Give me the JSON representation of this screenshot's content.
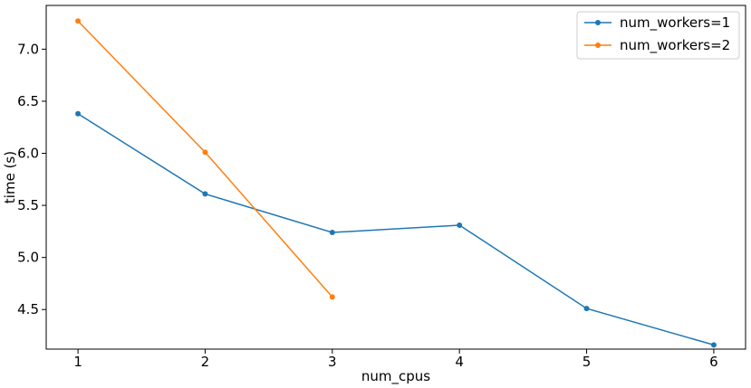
{
  "chart_data": {
    "type": "line",
    "xlabel": "num_cpus",
    "ylabel": "time (s)",
    "xlim": [
      0.75,
      6.25
    ],
    "ylim": [
      4.12,
      7.42
    ],
    "x_ticks": [
      "1",
      "2",
      "3",
      "4",
      "5",
      "6"
    ],
    "y_ticks": [
      "4.5",
      "5.0",
      "5.5",
      "6.0",
      "6.5",
      "7.0"
    ],
    "grid": false,
    "legend_position": "top-right",
    "series": [
      {
        "name": "num_workers=1",
        "color": "#1f77b4",
        "x": [
          1,
          2,
          3,
          4,
          5,
          6
        ],
        "y": [
          6.38,
          5.61,
          5.24,
          5.31,
          4.51,
          4.16
        ]
      },
      {
        "name": "num_workers=2",
        "color": "#ff7f0e",
        "x": [
          1,
          2,
          3
        ],
        "y": [
          7.27,
          6.01,
          4.62
        ]
      }
    ]
  }
}
